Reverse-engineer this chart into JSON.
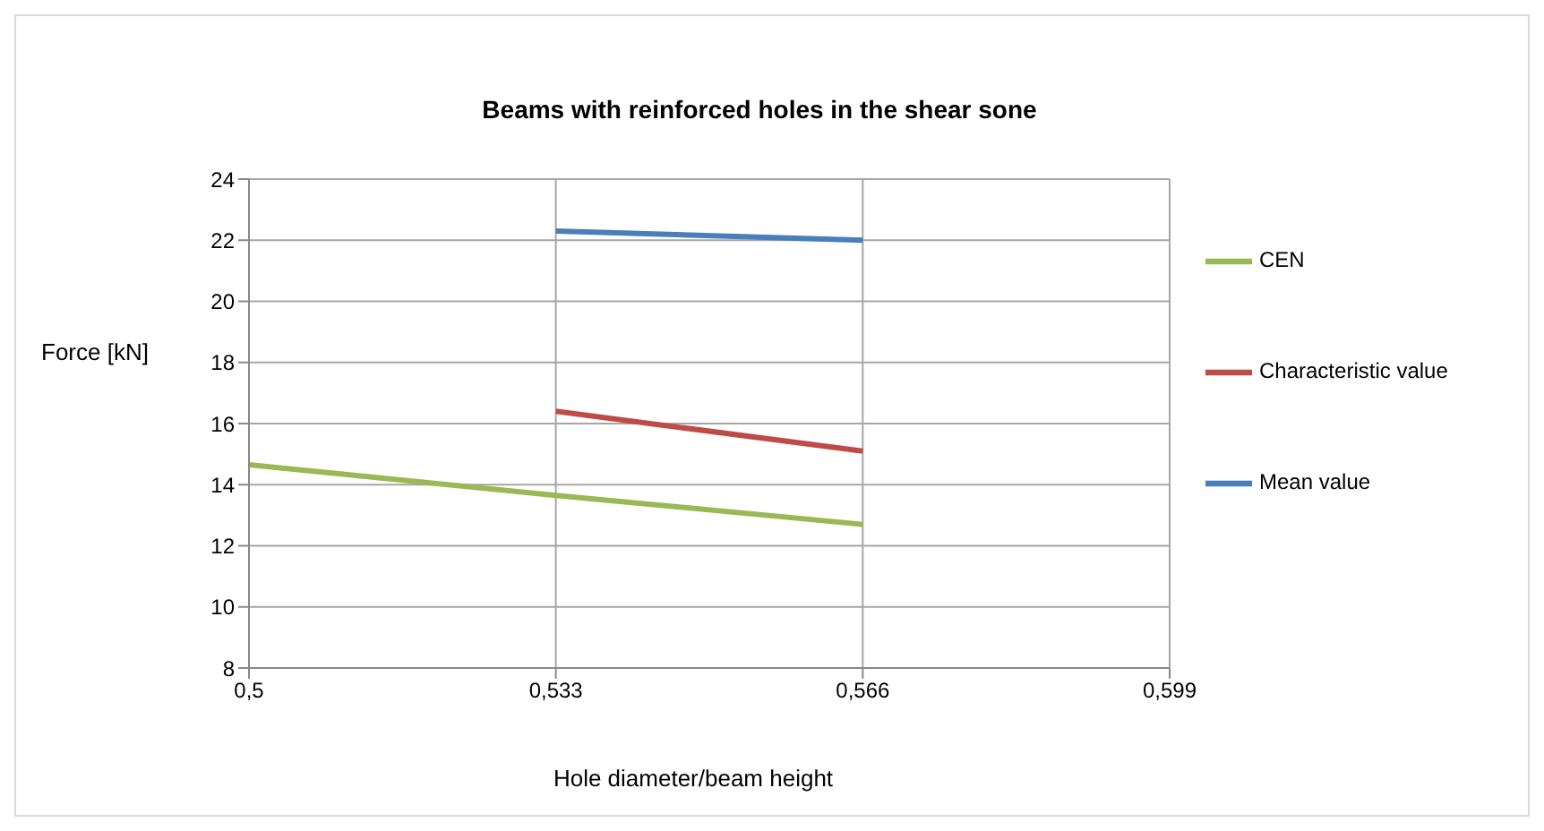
{
  "chart_data": {
    "type": "line",
    "title": "Beams with reinforced holes in the shear sone",
    "xlabel": "Hole diameter/beam height",
    "ylabel": "Force [kN]",
    "x": [
      0.5,
      0.533,
      0.566
    ],
    "series": [
      {
        "name": "Mean value",
        "color": "#4a7ebb",
        "values": [
          null,
          22.3,
          22.0
        ]
      },
      {
        "name": "Characteristic value",
        "color": "#be4b48",
        "values": [
          null,
          16.4,
          15.1
        ]
      },
      {
        "name": "CEN",
        "color": "#98b954",
        "values": [
          14.65,
          13.65,
          12.7
        ]
      }
    ],
    "xlim": [
      0.5,
      0.599
    ],
    "xticks": [
      {
        "value": 0.5,
        "label": "0,5"
      },
      {
        "value": 0.533,
        "label": "0,533"
      },
      {
        "value": 0.566,
        "label": "0,566"
      },
      {
        "value": 0.599,
        "label": "0,599"
      }
    ],
    "ylim": [
      8,
      24
    ],
    "yticks": [
      8,
      10,
      12,
      14,
      16,
      18,
      20,
      22,
      24
    ],
    "grid": true,
    "legend": "right",
    "marker": "none",
    "line_style": "solid"
  }
}
